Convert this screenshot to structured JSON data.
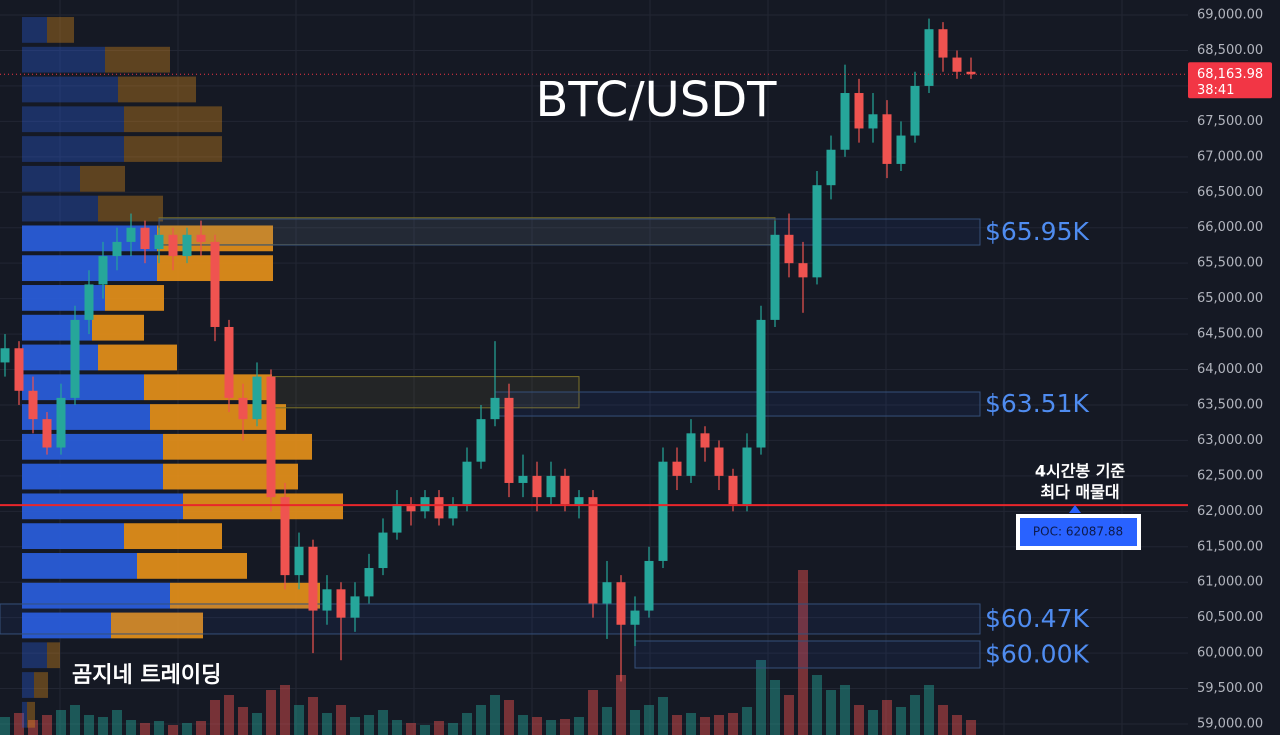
{
  "chart_data": {
    "type": "candlestick",
    "title": "BTC/USDT",
    "watermark": "곰지네 트레이딩",
    "ylim": [
      58845,
      69212
    ],
    "yticks": [
      {
        "value": 59000,
        "label": "59,000.00"
      },
      {
        "value": 59500,
        "label": "59,500.00"
      },
      {
        "value": 60000,
        "label": "60,000.00"
      },
      {
        "value": 60500,
        "label": "60,500.00"
      },
      {
        "value": 61000,
        "label": "61,000.00"
      },
      {
        "value": 61500,
        "label": "61,500.00"
      },
      {
        "value": 62000,
        "label": "62,000.00"
      },
      {
        "value": 62500,
        "label": "62,500.00"
      },
      {
        "value": 63000,
        "label": "63,000.00"
      },
      {
        "value": 63500,
        "label": "63,500.00"
      },
      {
        "value": 64000,
        "label": "64,000.00"
      },
      {
        "value": 64500,
        "label": "64,500.00"
      },
      {
        "value": 65000,
        "label": "65,000.00"
      },
      {
        "value": 65500,
        "label": "65,500.00"
      },
      {
        "value": 66000,
        "label": "66,000.00"
      },
      {
        "value": 66500,
        "label": "66,500.00"
      },
      {
        "value": 67000,
        "label": "67,000.00"
      },
      {
        "value": 67500,
        "label": "67,500.00"
      },
      {
        "value": 68000,
        "label": "68,000.00"
      },
      {
        "value": 68500,
        "label": "68,500.00"
      },
      {
        "value": 69000,
        "label": "69,000.00"
      }
    ],
    "grid": true,
    "up_color": "#26a69a",
    "down_color": "#ef5350",
    "candles": [
      [
        64100,
        64500,
        63900,
        64300
      ],
      [
        64300,
        64400,
        63500,
        63700
      ],
      [
        63700,
        63900,
        63100,
        63300
      ],
      [
        63300,
        63400,
        62800,
        62900
      ],
      [
        62900,
        63800,
        62800,
        63600
      ],
      [
        63600,
        64900,
        63500,
        64700
      ],
      [
        64700,
        65400,
        64500,
        65200
      ],
      [
        65200,
        65800,
        65000,
        65600
      ],
      [
        65600,
        66000,
        65400,
        65800
      ],
      [
        65800,
        66200,
        65600,
        66000
      ],
      [
        66000,
        66100,
        65500,
        65700
      ],
      [
        65700,
        66000,
        65500,
        65900
      ],
      [
        65900,
        66000,
        65400,
        65600
      ],
      [
        65600,
        66000,
        65500,
        65900
      ],
      [
        65900,
        66100,
        65600,
        65800
      ],
      [
        65800,
        65900,
        64400,
        64600
      ],
      [
        64600,
        64700,
        63400,
        63600
      ],
      [
        63600,
        63800,
        63000,
        63300
      ],
      [
        63300,
        64100,
        63200,
        63900
      ],
      [
        63900,
        64000,
        62000,
        62200
      ],
      [
        62200,
        62400,
        60900,
        61100
      ],
      [
        61100,
        61700,
        60900,
        61500
      ],
      [
        61500,
        61600,
        60000,
        60600
      ],
      [
        60600,
        61100,
        60400,
        60900
      ],
      [
        60900,
        61000,
        59900,
        60500
      ],
      [
        60500,
        61000,
        60300,
        60800
      ],
      [
        60800,
        61400,
        60700,
        61200
      ],
      [
        61200,
        61900,
        61100,
        61700
      ],
      [
        61700,
        62300,
        61600,
        62100
      ],
      [
        62100,
        62200,
        61800,
        62000
      ],
      [
        62000,
        62300,
        61900,
        62200
      ],
      [
        62200,
        62300,
        61800,
        61900
      ],
      [
        61900,
        62200,
        61800,
        62100
      ],
      [
        62100,
        62900,
        62000,
        62700
      ],
      [
        62700,
        63500,
        62600,
        63300
      ],
      [
        63300,
        64400,
        63200,
        63600
      ],
      [
        63600,
        63800,
        62200,
        62400
      ],
      [
        62400,
        62800,
        62200,
        62500
      ],
      [
        62500,
        62700,
        62000,
        62200
      ],
      [
        62200,
        62700,
        62100,
        62500
      ],
      [
        62500,
        62600,
        62000,
        62100
      ],
      [
        62100,
        62300,
        61900,
        62200
      ],
      [
        62200,
        62300,
        60500,
        60700
      ],
      [
        60700,
        61300,
        60200,
        61000
      ],
      [
        61000,
        61100,
        59600,
        60400
      ],
      [
        60400,
        60800,
        60100,
        60600
      ],
      [
        60600,
        61500,
        60500,
        61300
      ],
      [
        61300,
        62900,
        61200,
        62700
      ],
      [
        62700,
        62900,
        62300,
        62500
      ],
      [
        62500,
        63300,
        62400,
        63100
      ],
      [
        63100,
        63200,
        62700,
        62900
      ],
      [
        62900,
        63000,
        62300,
        62500
      ],
      [
        62500,
        62600,
        62000,
        62100
      ],
      [
        62100,
        63100,
        62000,
        62900
      ],
      [
        62900,
        64900,
        62800,
        64700
      ],
      [
        64700,
        66100,
        64600,
        65900
      ],
      [
        65900,
        66200,
        65300,
        65500
      ],
      [
        65500,
        65800,
        64800,
        65300
      ],
      [
        65300,
        66800,
        65200,
        66600
      ],
      [
        66600,
        67300,
        66400,
        67100
      ],
      [
        67100,
        68300,
        67000,
        67900
      ],
      [
        67900,
        68100,
        67200,
        67400
      ],
      [
        67400,
        67900,
        67200,
        67600
      ],
      [
        67600,
        67800,
        66700,
        66900
      ],
      [
        66900,
        67500,
        66800,
        67300
      ],
      [
        67300,
        68200,
        67200,
        68000
      ],
      [
        68000,
        68950,
        67900,
        68800
      ],
      [
        68800,
        68900,
        68200,
        68400
      ],
      [
        68400,
        68500,
        68100,
        68200
      ],
      [
        68200,
        68400,
        68100,
        68163.98
      ]
    ],
    "volumes": [
      18,
      22,
      15,
      20,
      25,
      30,
      20,
      18,
      25,
      15,
      12,
      14,
      10,
      12,
      14,
      35,
      40,
      28,
      22,
      45,
      50,
      30,
      38,
      22,
      30,
      18,
      20,
      25,
      15,
      12,
      10,
      14,
      12,
      22,
      30,
      40,
      35,
      20,
      18,
      15,
      16,
      18,
      45,
      28,
      60,
      25,
      30,
      38,
      20,
      22,
      18,
      20,
      22,
      28,
      75,
      55,
      40,
      165,
      60,
      45,
      50,
      30,
      25,
      35,
      28,
      40,
      50,
      30,
      20,
      15
    ],
    "profile": {
      "bins": [
        69000,
        68580,
        68160,
        67740,
        67320,
        66900,
        66480,
        66060,
        65640,
        65220,
        64800,
        64380,
        63960,
        63540,
        63120,
        62700,
        62280,
        61860,
        61440,
        61020,
        60600,
        60180,
        59760,
        59340,
        58920
      ],
      "buy": [
        25,
        83,
        96,
        102,
        102,
        58,
        76,
        135,
        135,
        83,
        70,
        76,
        122,
        128,
        141,
        141,
        161,
        102,
        115,
        148,
        89,
        25,
        12,
        5
      ],
      "sell": [
        27,
        65,
        78,
        98,
        98,
        45,
        65,
        116,
        116,
        59,
        52,
        79,
        128,
        136,
        149,
        135,
        160,
        98,
        110,
        150,
        92,
        13,
        14,
        8
      ],
      "buy_color": "#2a5fe0",
      "sell_color": "#e8921a",
      "value_area_bins": [
        7,
        20
      ]
    },
    "zones": [
      {
        "label": "$65.95K",
        "low": 65756,
        "high": 66123,
        "start": 11
      },
      {
        "label": "$63.51K",
        "low": 63344,
        "high": 63683,
        "start": 35
      },
      {
        "label": "$60.47K",
        "low": 60270,
        "high": 60693,
        "start": 0
      },
      {
        "label": "$60.00K",
        "low": 59790,
        "high": 60171,
        "start": 45
      }
    ],
    "highlight_boxes": [
      {
        "low": 65760,
        "high": 66140,
        "start": 11,
        "end": 55
      },
      {
        "low": 63460,
        "high": 63900,
        "start": 19,
        "end": 41
      }
    ],
    "poc": 62087.88,
    "poc_label": "POC: 62087.88",
    "poc_note": [
      "4시간봉 기준",
      "최다 매물대"
    ],
    "last_price": 68163.98,
    "last_price_label": "68,163.98",
    "countdown": "38:41"
  }
}
